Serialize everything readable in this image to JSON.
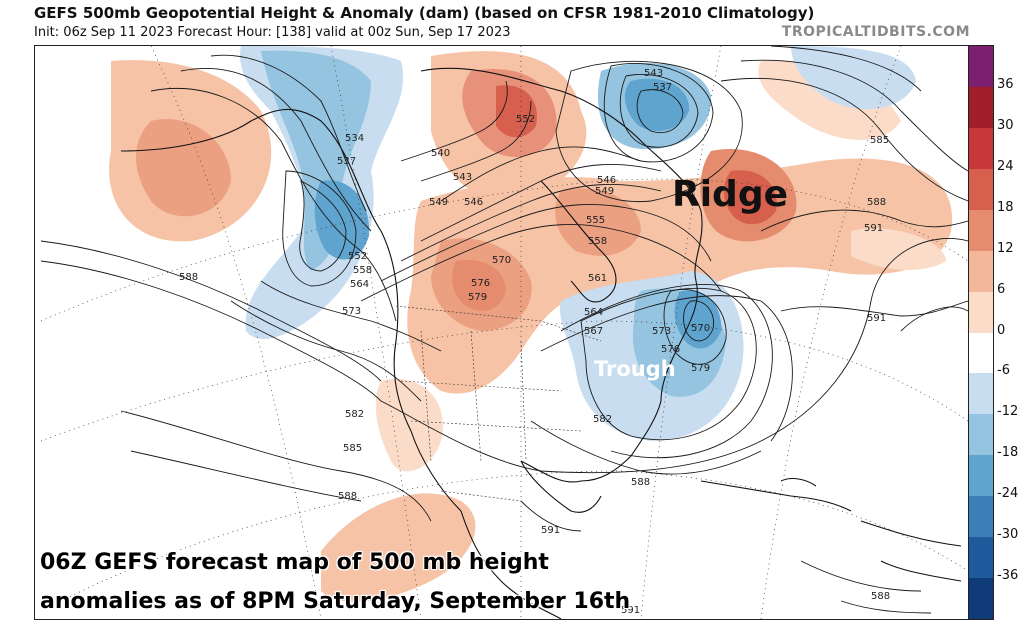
{
  "header": {
    "title": "GEFS 500mb Geopotential Height & Anomaly (dam) (based on CFSR 1981-2010 Climatology)",
    "subtitle": "Init: 06z Sep 11 2023   Forecast Hour: [138]   valid at 00z Sun, Sep 17 2023",
    "brand": "TROPICALTIDBITS.COM"
  },
  "annotations": {
    "ridge": "Ridge",
    "trough": "Trough",
    "caption_line1": "06Z GEFS forecast map of 500 mb height",
    "caption_line2": "anomalies as of 8PM Saturday, September 16th"
  },
  "colorbar": {
    "labels": [
      "36",
      "30",
      "24",
      "18",
      "12",
      "6",
      "0",
      "-6",
      "-12",
      "-18",
      "-24",
      "-30",
      "-36"
    ],
    "colors": [
      "#7b1f6e",
      "#a11d2c",
      "#c6363a",
      "#d6604d",
      "#e58c6e",
      "#f3b79a",
      "#fbdcc9",
      "#ffffff",
      "#c8def0",
      "#94c4df",
      "#5fa3cf",
      "#3a7fb8",
      "#1f5a9c",
      "#0f3b78"
    ]
  },
  "contour_labels": [
    "543",
    "537",
    "534",
    "537",
    "540",
    "543",
    "549",
    "546",
    "552",
    "558",
    "564",
    "573",
    "570",
    "576",
    "579",
    "588",
    "582",
    "585",
    "588",
    "555",
    "558",
    "561",
    "564",
    "567",
    "573",
    "576",
    "579",
    "570",
    "582",
    "588",
    "591",
    "585",
    "588",
    "591",
    "591",
    "591",
    "588",
    "546",
    "549",
    "552"
  ]
}
